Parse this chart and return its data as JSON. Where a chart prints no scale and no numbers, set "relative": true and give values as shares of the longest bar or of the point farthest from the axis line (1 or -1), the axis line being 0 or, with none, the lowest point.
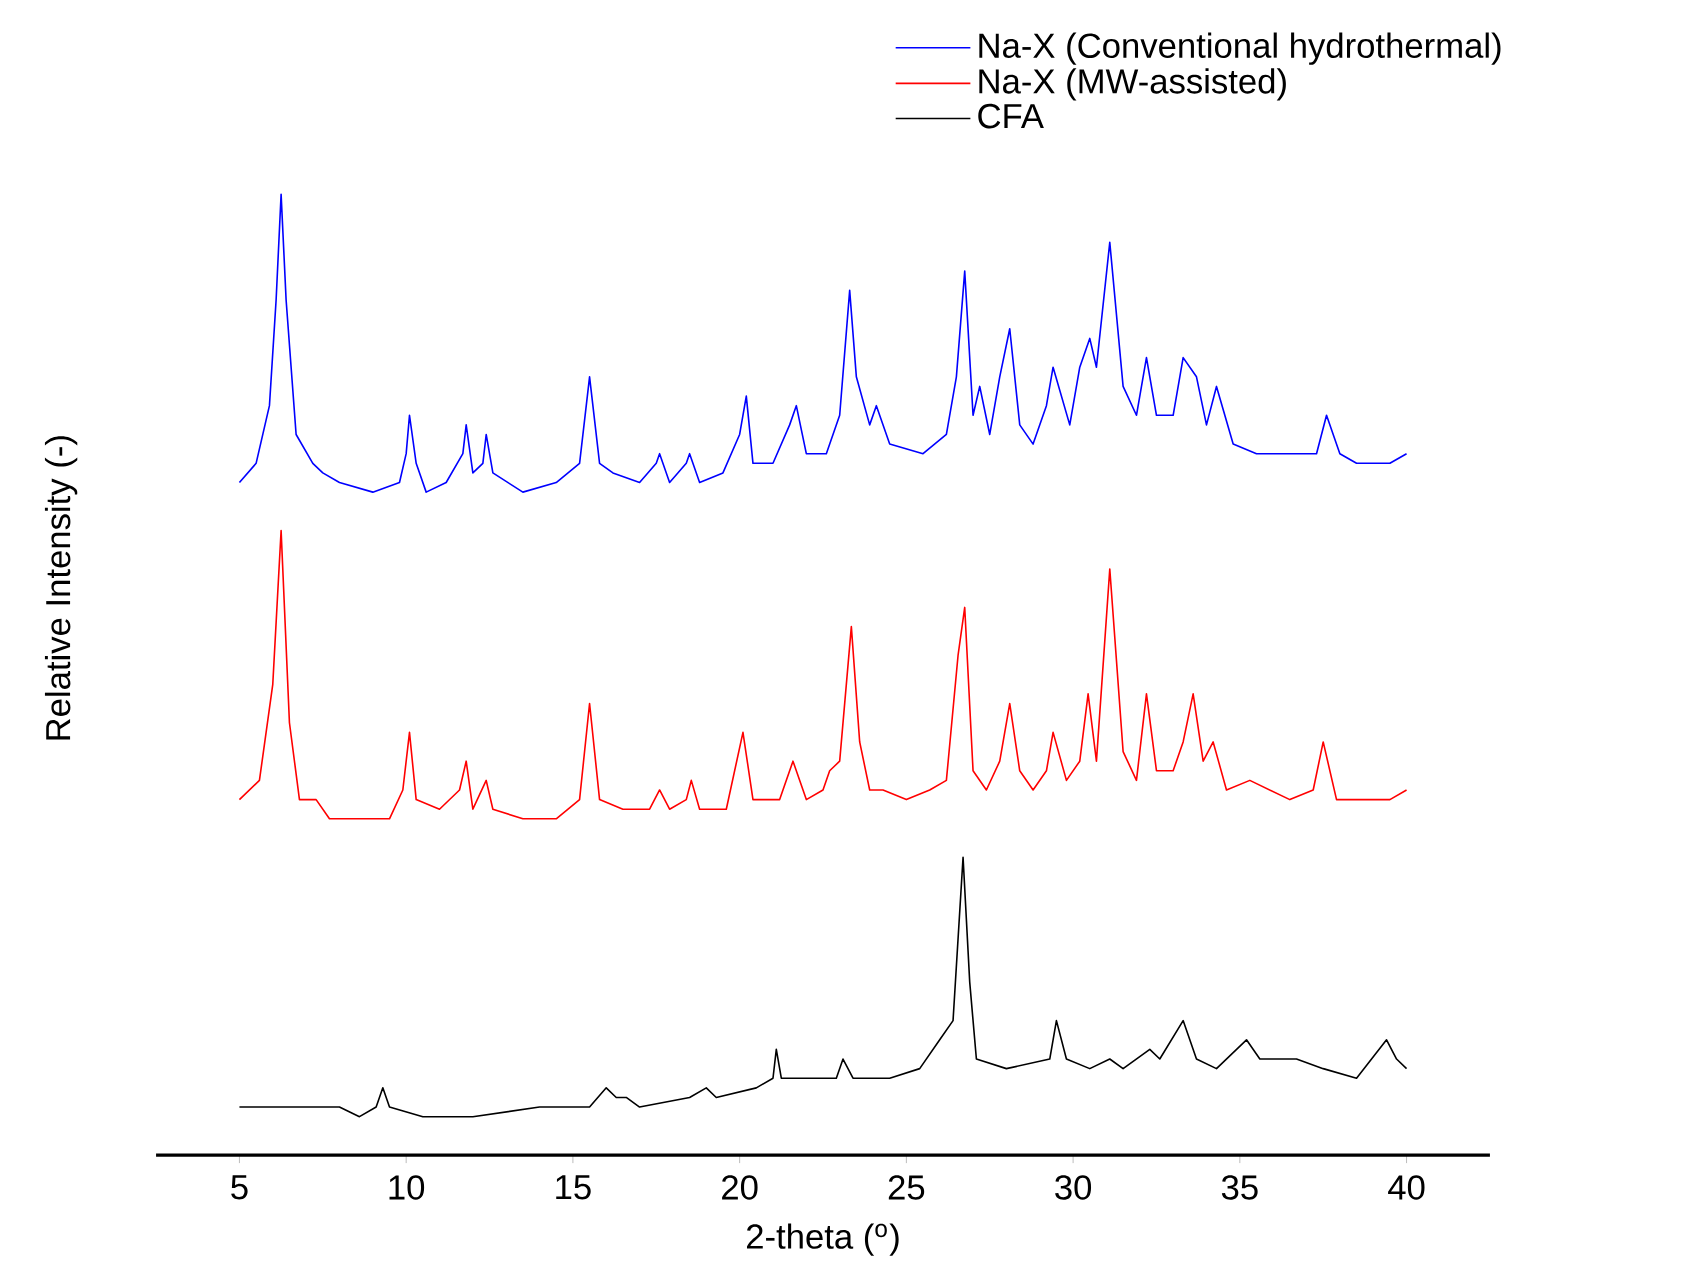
{
  "chart_data": {
    "type": "line",
    "relative": true,
    "xlabel": "2-theta ($^{o}$)",
    "ylabel": "Relative Intensity (-)",
    "xlim": [
      2.5,
      42.5
    ],
    "xticks": [
      5,
      10,
      15,
      20,
      25,
      30,
      35,
      40
    ],
    "legend": "top right",
    "series": [
      {
        "name": "Na-X (Conventional hydrothermal)",
        "color": "#0000ff",
        "x": [
          5.0,
          5.5,
          5.9,
          6.1,
          6.25,
          6.4,
          6.7,
          7.2,
          7.5,
          8.0,
          9.0,
          9.8,
          10.0,
          10.1,
          10.3,
          10.6,
          11.2,
          11.7,
          11.8,
          12.0,
          12.3,
          12.4,
          12.6,
          13.5,
          14.5,
          15.2,
          15.5,
          15.8,
          16.2,
          17.0,
          17.5,
          17.6,
          17.9,
          18.4,
          18.5,
          18.8,
          19.5,
          20.0,
          20.2,
          20.4,
          21.0,
          21.5,
          21.7,
          22.0,
          22.6,
          23.0,
          23.3,
          23.5,
          23.9,
          24.1,
          24.5,
          25.5,
          26.2,
          26.5,
          26.75,
          27.0,
          27.2,
          27.5,
          27.8,
          28.1,
          28.4,
          28.8,
          29.2,
          29.4,
          29.9,
          30.2,
          30.5,
          30.7,
          31.1,
          31.5,
          31.9,
          32.2,
          32.5,
          33.0,
          33.3,
          33.7,
          34.0,
          34.3,
          34.8,
          35.5,
          36.5,
          37.3,
          37.6,
          38.0,
          38.5,
          39.5,
          40.0
        ],
        "values": [
          0.7,
          0.72,
          0.78,
          0.89,
          1.0,
          0.89,
          0.75,
          0.72,
          0.71,
          0.7,
          0.69,
          0.7,
          0.73,
          0.77,
          0.72,
          0.69,
          0.7,
          0.73,
          0.76,
          0.71,
          0.72,
          0.75,
          0.71,
          0.69,
          0.7,
          0.72,
          0.81,
          0.72,
          0.71,
          0.7,
          0.72,
          0.73,
          0.7,
          0.72,
          0.73,
          0.7,
          0.71,
          0.75,
          0.79,
          0.72,
          0.72,
          0.76,
          0.78,
          0.73,
          0.73,
          0.77,
          0.9,
          0.81,
          0.76,
          0.78,
          0.74,
          0.73,
          0.75,
          0.81,
          0.92,
          0.77,
          0.8,
          0.75,
          0.81,
          0.86,
          0.76,
          0.74,
          0.78,
          0.82,
          0.76,
          0.82,
          0.85,
          0.82,
          0.95,
          0.8,
          0.77,
          0.83,
          0.77,
          0.77,
          0.83,
          0.81,
          0.76,
          0.8,
          0.74,
          0.73,
          0.73,
          0.73,
          0.77,
          0.73,
          0.72,
          0.72,
          0.73
        ]
      },
      {
        "name": "Na-X (MW-assisted)",
        "color": "#ff0000",
        "x": [
          5.0,
          5.6,
          6.0,
          6.25,
          6.5,
          6.8,
          7.3,
          7.7,
          8.5,
          9.5,
          9.9,
          10.1,
          10.3,
          11.0,
          11.6,
          11.8,
          12.0,
          12.4,
          12.6,
          13.5,
          14.5,
          15.2,
          15.5,
          15.8,
          16.5,
          17.3,
          17.6,
          17.9,
          18.4,
          18.55,
          18.8,
          19.6,
          20.1,
          20.4,
          21.2,
          21.6,
          22.0,
          22.5,
          22.7,
          23.0,
          23.35,
          23.6,
          23.9,
          24.3,
          25.0,
          25.7,
          26.2,
          26.55,
          26.75,
          27.0,
          27.4,
          27.8,
          28.1,
          28.4,
          28.8,
          29.2,
          29.4,
          29.8,
          30.2,
          30.45,
          30.7,
          31.1,
          31.5,
          31.9,
          32.2,
          32.5,
          33.0,
          33.3,
          33.6,
          33.9,
          34.2,
          34.6,
          35.3,
          36.5,
          37.2,
          37.5,
          37.9,
          38.7,
          39.5,
          40.0
        ],
        "values": [
          0.37,
          0.39,
          0.49,
          0.65,
          0.45,
          0.37,
          0.37,
          0.35,
          0.35,
          0.35,
          0.38,
          0.44,
          0.37,
          0.36,
          0.38,
          0.41,
          0.36,
          0.39,
          0.36,
          0.35,
          0.35,
          0.37,
          0.47,
          0.37,
          0.36,
          0.36,
          0.38,
          0.36,
          0.37,
          0.39,
          0.36,
          0.36,
          0.44,
          0.37,
          0.37,
          0.41,
          0.37,
          0.38,
          0.4,
          0.41,
          0.55,
          0.43,
          0.38,
          0.38,
          0.37,
          0.38,
          0.39,
          0.52,
          0.57,
          0.4,
          0.38,
          0.41,
          0.47,
          0.4,
          0.38,
          0.4,
          0.44,
          0.39,
          0.41,
          0.48,
          0.41,
          0.61,
          0.42,
          0.39,
          0.48,
          0.4,
          0.4,
          0.43,
          0.48,
          0.41,
          0.43,
          0.38,
          0.39,
          0.37,
          0.38,
          0.43,
          0.37,
          0.37,
          0.37,
          0.38
        ]
      },
      {
        "name": "CFA",
        "color": "#000000",
        "x": [
          5.0,
          6.5,
          8.0,
          8.6,
          9.1,
          9.3,
          9.5,
          10.5,
          12.0,
          14.0,
          15.5,
          16.0,
          16.3,
          16.6,
          17.0,
          18.5,
          19.0,
          19.3,
          20.5,
          21.0,
          21.1,
          21.25,
          22.0,
          22.9,
          23.1,
          23.4,
          24.5,
          25.4,
          26.0,
          26.4,
          26.7,
          26.9,
          27.1,
          28.0,
          29.3,
          29.5,
          29.8,
          30.5,
          31.1,
          31.5,
          32.3,
          32.6,
          33.3,
          33.7,
          34.3,
          35.2,
          35.6,
          36.7,
          37.5,
          38.5,
          39.4,
          39.7,
          40.0
        ],
        "values": [
          0.05,
          0.05,
          0.05,
          0.04,
          0.05,
          0.07,
          0.05,
          0.04,
          0.04,
          0.05,
          0.05,
          0.07,
          0.06,
          0.06,
          0.05,
          0.06,
          0.07,
          0.06,
          0.07,
          0.08,
          0.11,
          0.08,
          0.08,
          0.08,
          0.1,
          0.08,
          0.08,
          0.09,
          0.12,
          0.14,
          0.31,
          0.18,
          0.1,
          0.09,
          0.1,
          0.14,
          0.1,
          0.09,
          0.1,
          0.09,
          0.11,
          0.1,
          0.14,
          0.1,
          0.09,
          0.12,
          0.1,
          0.1,
          0.09,
          0.08,
          0.12,
          0.1,
          0.09
        ]
      }
    ]
  }
}
